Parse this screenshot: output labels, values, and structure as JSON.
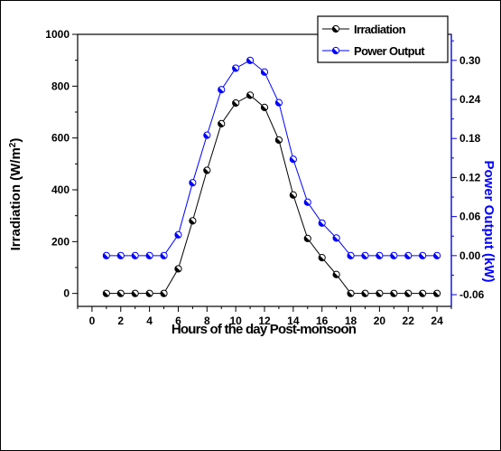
{
  "chart_data": {
    "type": "line",
    "title": "",
    "xlabel": "Hours of the day Post-monsoon",
    "ylabel": "Irradiation (W/m2)",
    "ylabel_parts": {
      "before": "Irradiation (W/m",
      "sup": "2",
      "after": ")"
    },
    "y2label": "Power Output (kW)",
    "xlim": [
      -1,
      25
    ],
    "ylim": [
      -50,
      1000
    ],
    "y2lim": [
      -0.078,
      0.34
    ],
    "x_ticks": [
      "0",
      "2",
      "4",
      "6",
      "8",
      "10",
      "12",
      "14",
      "16",
      "18",
      "20",
      "22",
      "24"
    ],
    "y_ticks": [
      "0",
      "200",
      "400",
      "600",
      "800",
      "1000"
    ],
    "y2_ticks": [
      "-0.06",
      "0.00",
      "0.06",
      "0.12",
      "0.18",
      "0.24",
      "0.30"
    ],
    "legend_position": "top-right",
    "x": [
      1,
      2,
      3,
      4,
      5,
      6,
      7,
      8,
      9,
      10,
      11,
      12,
      13,
      14,
      15,
      16,
      17,
      18,
      19,
      20,
      21,
      22,
      23,
      24
    ],
    "series": [
      {
        "name": "Irradiation",
        "axis": "left",
        "color": "#000000",
        "marker": "half-filled-circle",
        "values": [
          0,
          0,
          0,
          0,
          0,
          95,
          280,
          475,
          655,
          735,
          765,
          718,
          592,
          380,
          212,
          138,
          73,
          0,
          0,
          0,
          0,
          0,
          0,
          0
        ]
      },
      {
        "name": "Power Output",
        "axis": "right",
        "color": "#0000ff",
        "marker": "half-filled-circle",
        "values": [
          0,
          0,
          0,
          0,
          0,
          0.032,
          0.112,
          0.185,
          0.255,
          0.288,
          0.3,
          0.282,
          0.235,
          0.148,
          0.082,
          0.05,
          0.027,
          0,
          0,
          0,
          0,
          0,
          0,
          0
        ]
      }
    ]
  }
}
